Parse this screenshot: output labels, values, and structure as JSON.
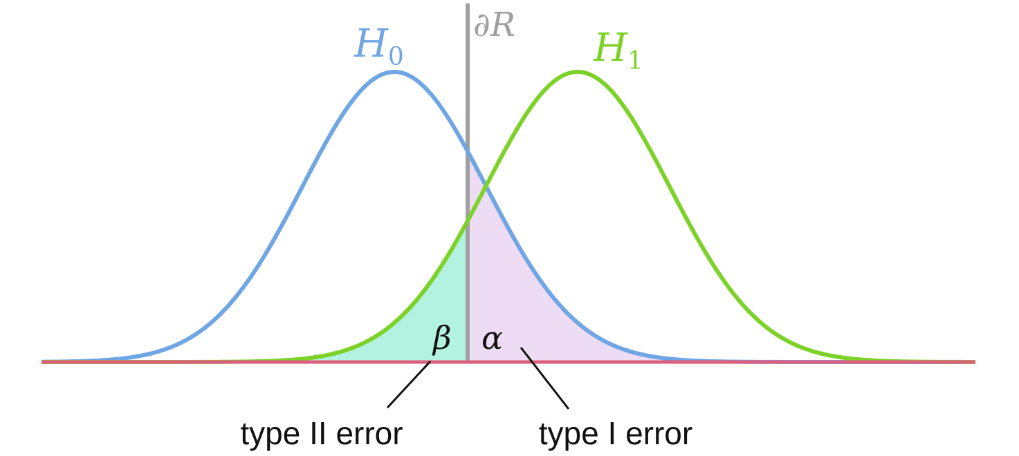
{
  "diagram": {
    "hypotheses": {
      "h0": {
        "symbol": "H",
        "subscript": "0",
        "color": "#6fa6e3"
      },
      "h1": {
        "symbol": "H",
        "subscript": "1",
        "color": "#7dd22a"
      }
    },
    "boundary": {
      "label": "∂R",
      "color": "#a0a0a0"
    },
    "regions": {
      "beta": {
        "symbol": "β",
        "fill": "#b3f2e0"
      },
      "alpha": {
        "symbol": "α",
        "fill": "#eedcf4"
      }
    },
    "annotations": {
      "type2": "type II error",
      "type1": "type I error"
    },
    "baseline_color": "#dd5f7e",
    "distributions": {
      "h0_mean": 0,
      "h1_mean": 2,
      "sigma": 1,
      "threshold": 0.8
    }
  }
}
